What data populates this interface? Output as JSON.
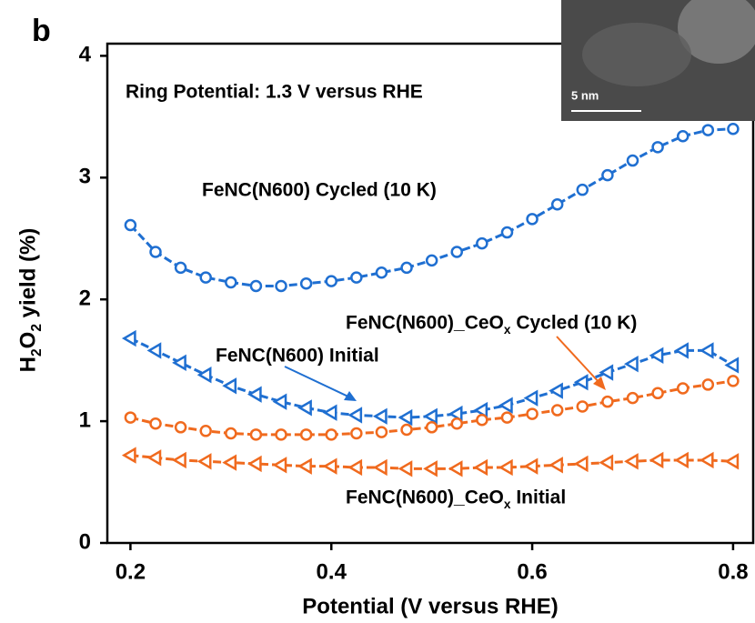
{
  "chart_data": {
    "type": "line",
    "panel_label": "b",
    "xlabel": "Potential (V versus RHE)",
    "ylabel": "H2O2 yield (%)",
    "annotation": "Ring Potential: 1.3 V versus RHE",
    "inset_scale_label": "5 nm",
    "x": [
      0.2,
      0.225,
      0.25,
      0.275,
      0.3,
      0.325,
      0.35,
      0.375,
      0.4,
      0.425,
      0.45,
      0.475,
      0.5,
      0.525,
      0.55,
      0.575,
      0.6,
      0.625,
      0.65,
      0.675,
      0.7,
      0.725,
      0.75,
      0.775,
      0.8
    ],
    "xlim": [
      0.177,
      0.82
    ],
    "xticks": [
      0.2,
      0.4,
      0.6,
      0.8
    ],
    "ylim": [
      0,
      4.1
    ],
    "yticks": [
      0,
      1,
      2,
      3,
      4
    ],
    "series": [
      {
        "name": "FeNC(N600) Cycled (10 K)",
        "color": "#1f6fd1",
        "marker": "circle",
        "values": [
          2.61,
          2.39,
          2.26,
          2.18,
          2.14,
          2.11,
          2.11,
          2.13,
          2.15,
          2.18,
          2.22,
          2.26,
          2.32,
          2.39,
          2.46,
          2.55,
          2.66,
          2.78,
          2.9,
          3.02,
          3.14,
          3.25,
          3.34,
          3.39,
          3.4
        ]
      },
      {
        "name": "FeNC(N600) Initial",
        "color": "#1f6fd1",
        "marker": "triangle",
        "values": [
          1.68,
          1.58,
          1.48,
          1.38,
          1.29,
          1.22,
          1.16,
          1.11,
          1.07,
          1.05,
          1.04,
          1.03,
          1.04,
          1.06,
          1.09,
          1.13,
          1.19,
          1.25,
          1.32,
          1.4,
          1.47,
          1.54,
          1.58,
          1.58,
          1.46
        ]
      },
      {
        "name": "FeNC(N600)_CeOx Cycled (10 K)",
        "color": "#f06a1e",
        "marker": "circle",
        "values": [
          1.03,
          0.98,
          0.95,
          0.92,
          0.9,
          0.89,
          0.89,
          0.89,
          0.89,
          0.9,
          0.91,
          0.93,
          0.95,
          0.98,
          1.01,
          1.03,
          1.06,
          1.09,
          1.12,
          1.16,
          1.19,
          1.23,
          1.27,
          1.3,
          1.33
        ]
      },
      {
        "name": "FeNC(N600)_CeOx Initial",
        "color": "#f06a1e",
        "marker": "triangle",
        "values": [
          0.72,
          0.7,
          0.68,
          0.67,
          0.66,
          0.65,
          0.64,
          0.63,
          0.63,
          0.62,
          0.62,
          0.61,
          0.61,
          0.61,
          0.62,
          0.62,
          0.63,
          0.64,
          0.65,
          0.66,
          0.67,
          0.68,
          0.68,
          0.68,
          0.67
        ]
      }
    ]
  }
}
